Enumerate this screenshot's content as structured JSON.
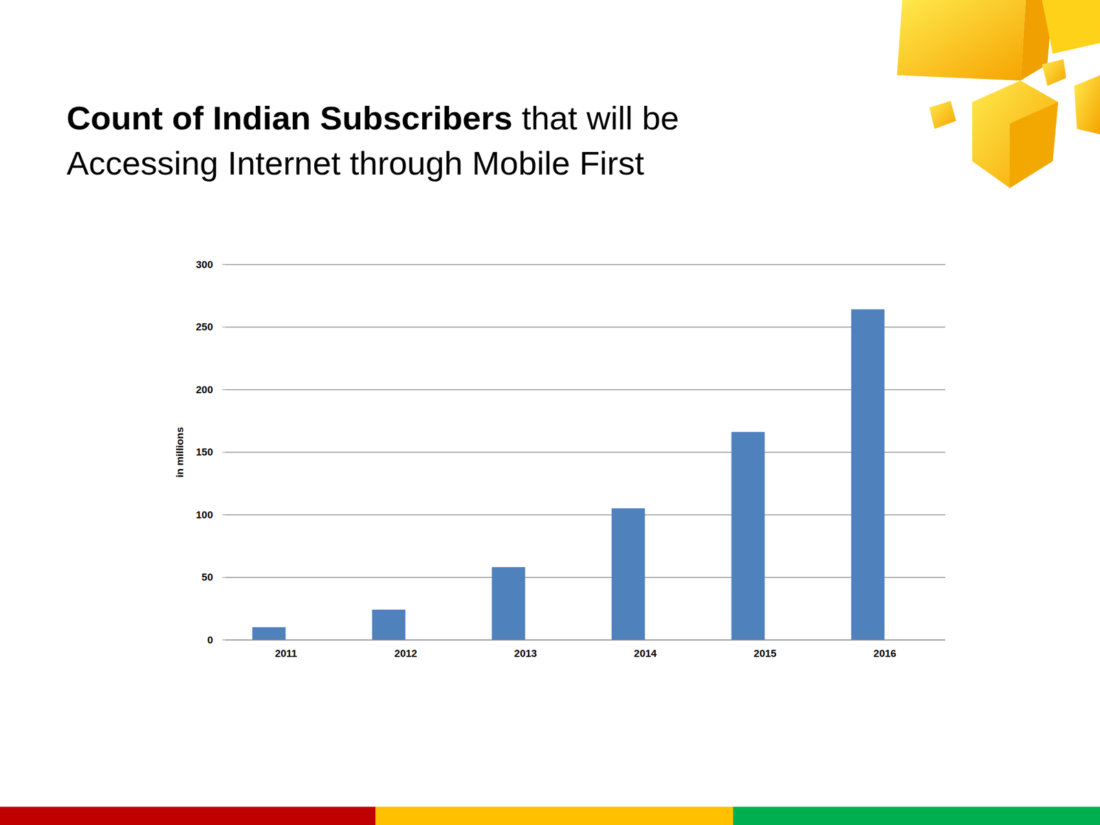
{
  "chart_data": {
    "type": "bar",
    "title": [
      "Count of Indian Subscribers",
      "that will be Accessing Internet through Mobile First"
    ],
    "ylabel": "in millions",
    "categories": [
      "2011",
      "2012",
      "2013",
      "2014",
      "2015",
      "2016"
    ],
    "values": [
      10,
      24,
      58,
      105,
      166,
      264
    ],
    "color": "#4f81bd",
    "ylim": [
      0,
      300
    ],
    "yticks": [
      0,
      50,
      100,
      150,
      200,
      250,
      300
    ],
    "grid": true
  }
}
